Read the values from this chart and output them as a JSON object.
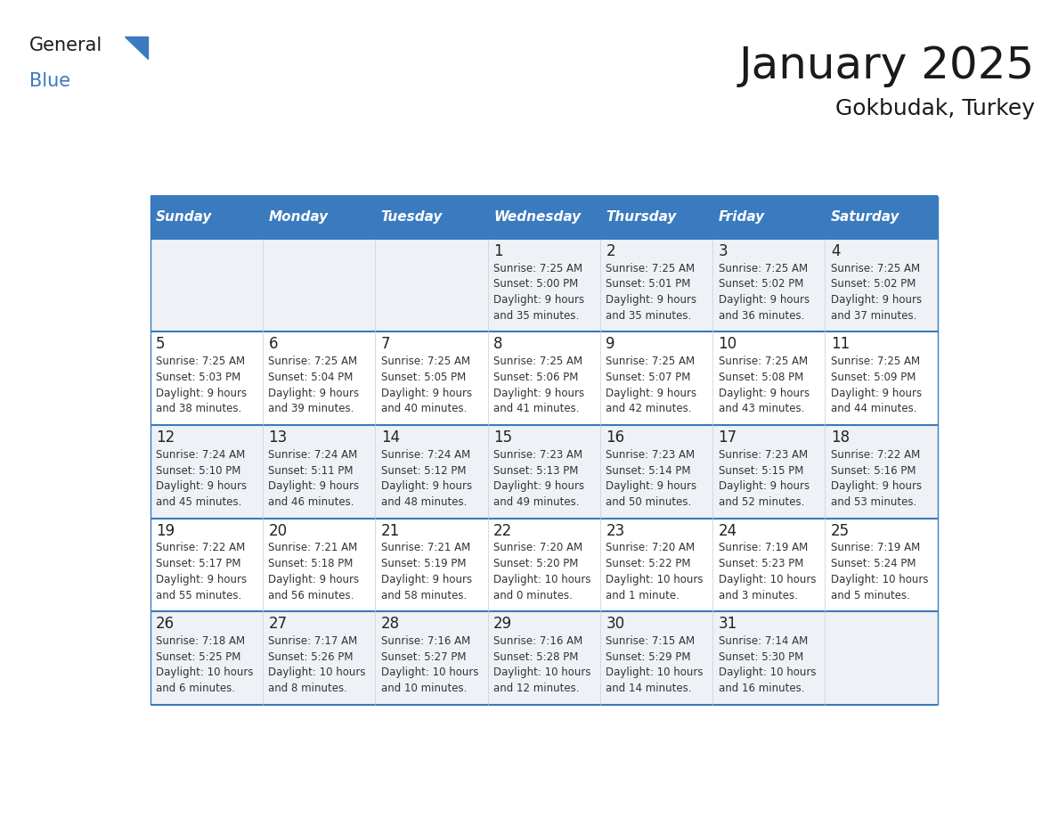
{
  "title": "January 2025",
  "subtitle": "Gokbudak, Turkey",
  "days_of_week": [
    "Sunday",
    "Monday",
    "Tuesday",
    "Wednesday",
    "Thursday",
    "Friday",
    "Saturday"
  ],
  "header_bg": "#3a7abf",
  "header_text": "#ffffff",
  "row_bg_odd": "#eef2f7",
  "row_bg_even": "#ffffff",
  "border_color": "#3a7abf",
  "text_color": "#333333",
  "calendar": [
    [
      {
        "day": null,
        "sunrise": null,
        "sunset": null,
        "daylight": null
      },
      {
        "day": null,
        "sunrise": null,
        "sunset": null,
        "daylight": null
      },
      {
        "day": null,
        "sunrise": null,
        "sunset": null,
        "daylight": null
      },
      {
        "day": 1,
        "sunrise": "7:25 AM",
        "sunset": "5:00 PM",
        "daylight": "9 hours\nand 35 minutes."
      },
      {
        "day": 2,
        "sunrise": "7:25 AM",
        "sunset": "5:01 PM",
        "daylight": "9 hours\nand 35 minutes."
      },
      {
        "day": 3,
        "sunrise": "7:25 AM",
        "sunset": "5:02 PM",
        "daylight": "9 hours\nand 36 minutes."
      },
      {
        "day": 4,
        "sunrise": "7:25 AM",
        "sunset": "5:02 PM",
        "daylight": "9 hours\nand 37 minutes."
      }
    ],
    [
      {
        "day": 5,
        "sunrise": "7:25 AM",
        "sunset": "5:03 PM",
        "daylight": "9 hours\nand 38 minutes."
      },
      {
        "day": 6,
        "sunrise": "7:25 AM",
        "sunset": "5:04 PM",
        "daylight": "9 hours\nand 39 minutes."
      },
      {
        "day": 7,
        "sunrise": "7:25 AM",
        "sunset": "5:05 PM",
        "daylight": "9 hours\nand 40 minutes."
      },
      {
        "day": 8,
        "sunrise": "7:25 AM",
        "sunset": "5:06 PM",
        "daylight": "9 hours\nand 41 minutes."
      },
      {
        "day": 9,
        "sunrise": "7:25 AM",
        "sunset": "5:07 PM",
        "daylight": "9 hours\nand 42 minutes."
      },
      {
        "day": 10,
        "sunrise": "7:25 AM",
        "sunset": "5:08 PM",
        "daylight": "9 hours\nand 43 minutes."
      },
      {
        "day": 11,
        "sunrise": "7:25 AM",
        "sunset": "5:09 PM",
        "daylight": "9 hours\nand 44 minutes."
      }
    ],
    [
      {
        "day": 12,
        "sunrise": "7:24 AM",
        "sunset": "5:10 PM",
        "daylight": "9 hours\nand 45 minutes."
      },
      {
        "day": 13,
        "sunrise": "7:24 AM",
        "sunset": "5:11 PM",
        "daylight": "9 hours\nand 46 minutes."
      },
      {
        "day": 14,
        "sunrise": "7:24 AM",
        "sunset": "5:12 PM",
        "daylight": "9 hours\nand 48 minutes."
      },
      {
        "day": 15,
        "sunrise": "7:23 AM",
        "sunset": "5:13 PM",
        "daylight": "9 hours\nand 49 minutes."
      },
      {
        "day": 16,
        "sunrise": "7:23 AM",
        "sunset": "5:14 PM",
        "daylight": "9 hours\nand 50 minutes."
      },
      {
        "day": 17,
        "sunrise": "7:23 AM",
        "sunset": "5:15 PM",
        "daylight": "9 hours\nand 52 minutes."
      },
      {
        "day": 18,
        "sunrise": "7:22 AM",
        "sunset": "5:16 PM",
        "daylight": "9 hours\nand 53 minutes."
      }
    ],
    [
      {
        "day": 19,
        "sunrise": "7:22 AM",
        "sunset": "5:17 PM",
        "daylight": "9 hours\nand 55 minutes."
      },
      {
        "day": 20,
        "sunrise": "7:21 AM",
        "sunset": "5:18 PM",
        "daylight": "9 hours\nand 56 minutes."
      },
      {
        "day": 21,
        "sunrise": "7:21 AM",
        "sunset": "5:19 PM",
        "daylight": "9 hours\nand 58 minutes."
      },
      {
        "day": 22,
        "sunrise": "7:20 AM",
        "sunset": "5:20 PM",
        "daylight": "10 hours\nand 0 minutes."
      },
      {
        "day": 23,
        "sunrise": "7:20 AM",
        "sunset": "5:22 PM",
        "daylight": "10 hours\nand 1 minute."
      },
      {
        "day": 24,
        "sunrise": "7:19 AM",
        "sunset": "5:23 PM",
        "daylight": "10 hours\nand 3 minutes."
      },
      {
        "day": 25,
        "sunrise": "7:19 AM",
        "sunset": "5:24 PM",
        "daylight": "10 hours\nand 5 minutes."
      }
    ],
    [
      {
        "day": 26,
        "sunrise": "7:18 AM",
        "sunset": "5:25 PM",
        "daylight": "10 hours\nand 6 minutes."
      },
      {
        "day": 27,
        "sunrise": "7:17 AM",
        "sunset": "5:26 PM",
        "daylight": "10 hours\nand 8 minutes."
      },
      {
        "day": 28,
        "sunrise": "7:16 AM",
        "sunset": "5:27 PM",
        "daylight": "10 hours\nand 10 minutes."
      },
      {
        "day": 29,
        "sunrise": "7:16 AM",
        "sunset": "5:28 PM",
        "daylight": "10 hours\nand 12 minutes."
      },
      {
        "day": 30,
        "sunrise": "7:15 AM",
        "sunset": "5:29 PM",
        "daylight": "10 hours\nand 14 minutes."
      },
      {
        "day": 31,
        "sunrise": "7:14 AM",
        "sunset": "5:30 PM",
        "daylight": "10 hours\nand 16 minutes."
      },
      {
        "day": null,
        "sunrise": null,
        "sunset": null,
        "daylight": null
      }
    ]
  ],
  "logo_general_color": "#1a1a1a",
  "logo_blue_color": "#3a7abf",
  "triangle_color": "#3a7abf",
  "title_color": "#1a1a1a",
  "title_fontsize": 36,
  "subtitle_fontsize": 18,
  "header_fontsize": 11,
  "day_num_fontsize": 12,
  "cell_text_fontsize": 8.5
}
